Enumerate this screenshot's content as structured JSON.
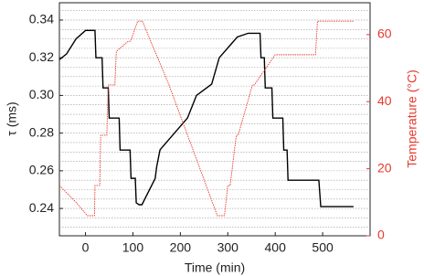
{
  "chart_data": {
    "type": "line",
    "xlabel": "Time (min)",
    "ylabel": "τ (ms)",
    "y2label": "Temperature (°C)",
    "xlim": [
      -55,
      600
    ],
    "xticks": [
      0,
      100,
      200,
      300,
      400,
      500
    ],
    "ylim": [
      0.2255,
      0.3492
    ],
    "yticks": [
      0.24,
      0.26,
      0.28,
      {
        "value": 0.3,
        "label": "0.30"
      },
      0.32,
      0.34
    ],
    "y_minor_ticks": [
      0.23,
      0.235,
      0.245,
      0.25,
      0.255,
      0.265,
      0.27,
      0.275,
      0.285,
      0.29,
      0.295,
      0.305,
      0.31,
      0.315,
      0.325,
      0.33,
      0.335,
      0.345
    ],
    "y2lim": [
      0,
      69.5
    ],
    "y2ticks": [
      0,
      20,
      40,
      60
    ],
    "grid": true,
    "series": [
      {
        "name": "τ",
        "color": "#000000",
        "axis": "y",
        "x": [
          -55,
          -40,
          -20,
          0,
          20,
          22,
          35,
          37,
          48,
          50,
          71,
          73,
          94,
          96,
          105,
          107,
          113,
          119,
          147,
          150,
          157,
          160,
          215,
          234,
          266,
          282,
          320,
          343,
          368,
          370,
          377,
          379,
          393,
          395,
          416,
          418,
          425,
          427,
          492,
          496,
          565
        ],
        "values": [
          0.319,
          0.322,
          0.33,
          0.3345,
          0.3345,
          0.32,
          0.32,
          0.304,
          0.304,
          0.288,
          0.288,
          0.271,
          0.271,
          0.256,
          0.256,
          0.243,
          0.242,
          0.242,
          0.256,
          0.262,
          0.271,
          0.272,
          0.288,
          0.3,
          0.306,
          0.32,
          0.331,
          0.333,
          0.333,
          0.32,
          0.32,
          0.304,
          0.304,
          0.288,
          0.288,
          0.271,
          0.271,
          0.255,
          0.255,
          0.241,
          0.241
        ]
      },
      {
        "name": "Temperature",
        "color": "#e8392f",
        "axis": "y2",
        "x": [
          -55,
          -20,
          4,
          19,
          20,
          30,
          32,
          45,
          48,
          62,
          65,
          90,
          95,
          110,
          120,
          176,
          278,
          293,
          300,
          305,
          318,
          322,
          352,
          356,
          400,
          404,
          485,
          489,
          565
        ],
        "values": [
          15,
          10,
          6,
          6,
          15,
          15,
          30,
          30,
          45,
          45,
          55,
          58,
          58,
          64,
          64,
          45,
          6,
          6,
          15,
          15,
          30,
          30,
          45,
          45,
          54,
          54,
          54,
          64,
          64
        ]
      }
    ]
  }
}
